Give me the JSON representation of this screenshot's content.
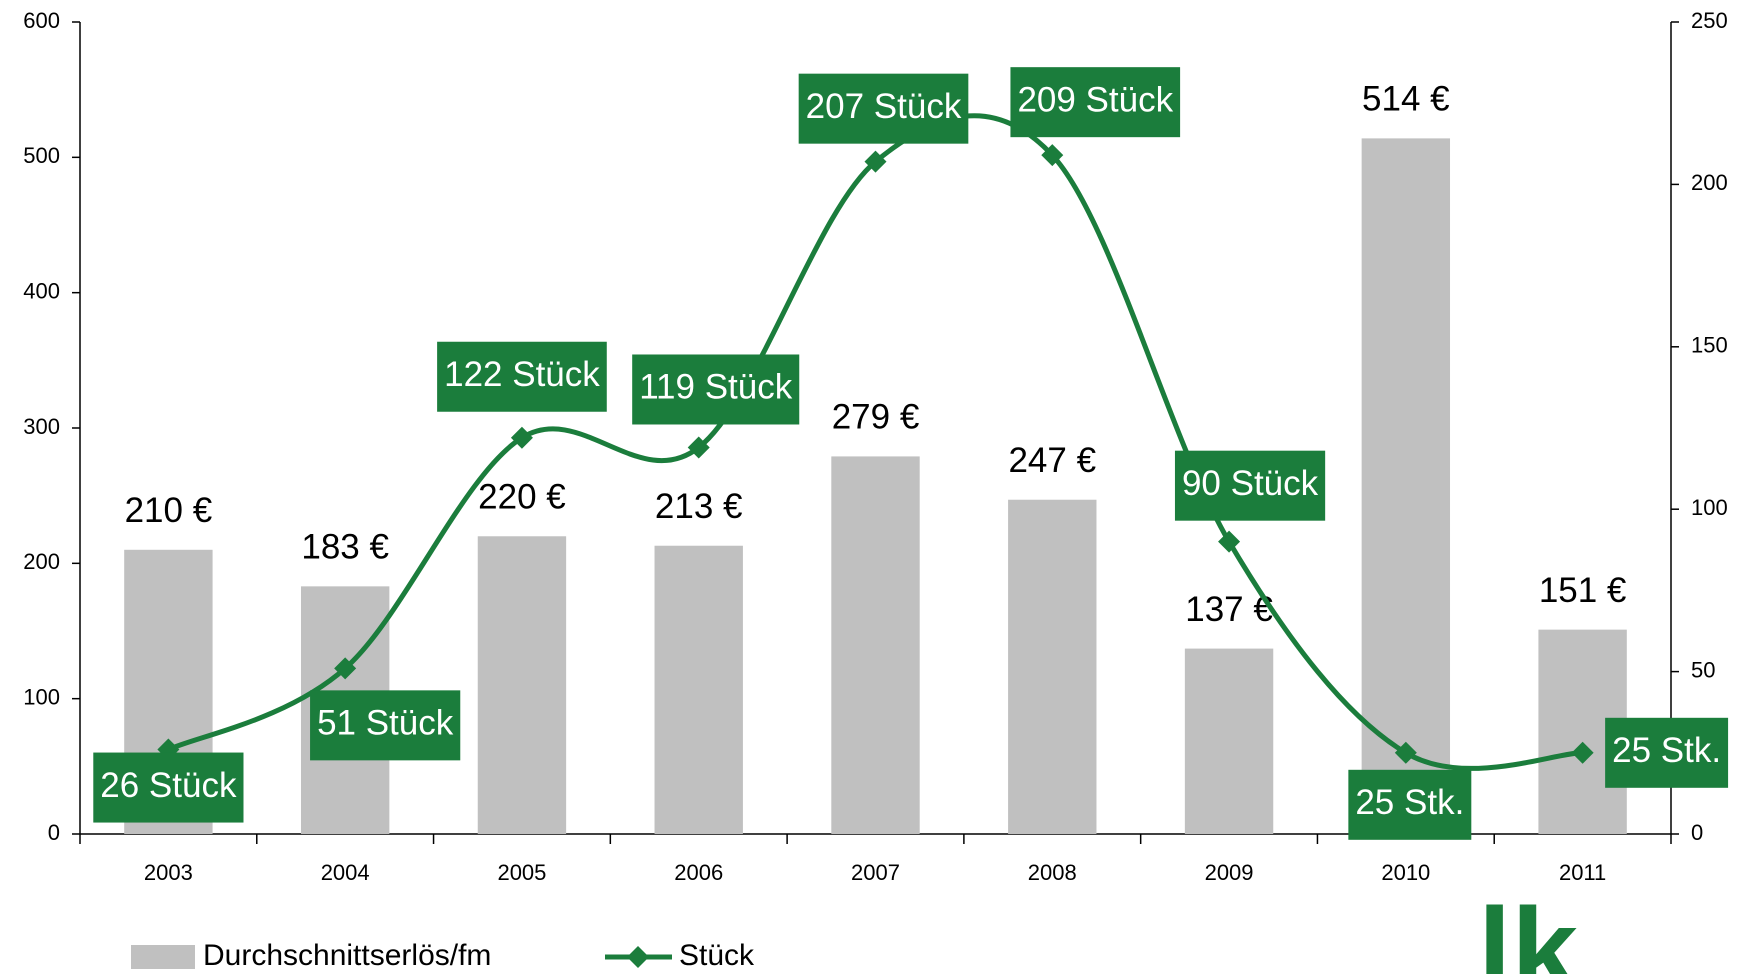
{
  "chart_data": {
    "type": "bar_line",
    "categories": [
      "2003",
      "2004",
      "2005",
      "2006",
      "2007",
      "2008",
      "2009",
      "2010",
      "2011"
    ],
    "series": [
      {
        "name": "Durchschnittserlös/fm",
        "type": "bar",
        "color": "#c0c0c0",
        "values": [
          210,
          183,
          220,
          213,
          279,
          247,
          137,
          514,
          151
        ],
        "value_labels": [
          "210 €",
          "183 €",
          "220 €",
          "213 €",
          "279 €",
          "247 €",
          "137 €",
          "514 €",
          "151 €"
        ]
      },
      {
        "name": "Stück",
        "type": "line",
        "axis": "y2",
        "color": "#1b7d3c",
        "values": [
          26,
          51,
          122,
          119,
          207,
          209,
          90,
          25,
          25
        ],
        "value_labels": [
          "26 Stück",
          "51 Stück",
          "122 Stück",
          "119 Stück",
          "207 Stück",
          "209 Stück",
          "90 Stück",
          "25 Stk.",
          "25 Stk."
        ]
      }
    ],
    "ylim": [
      0,
      600
    ],
    "yticks": [
      0,
      100,
      200,
      300,
      400,
      500,
      600
    ],
    "y2lim": [
      0,
      250
    ],
    "y2ticks": [
      0,
      50,
      100,
      150,
      200,
      250
    ],
    "legend": "bottom",
    "logo": "lk"
  }
}
